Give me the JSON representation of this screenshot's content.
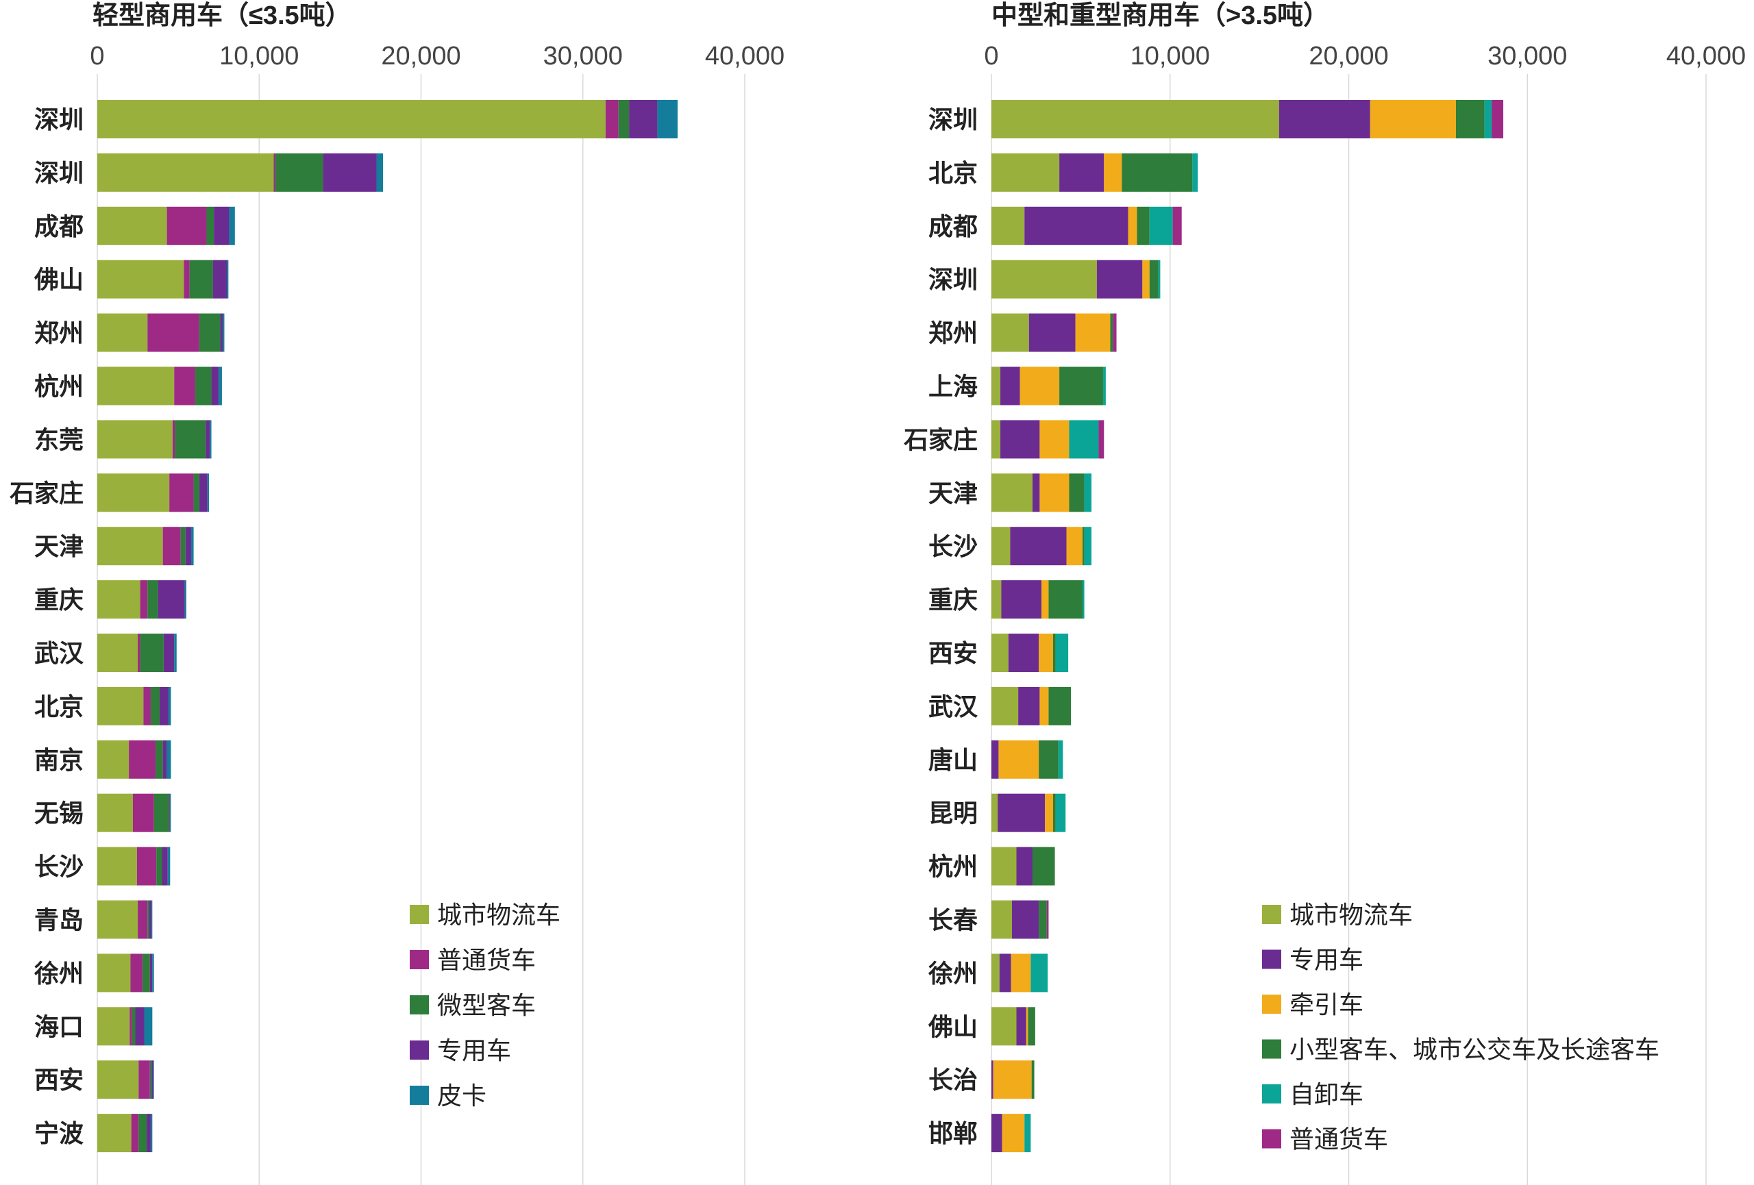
{
  "chart_data": [
    {
      "type": "bar",
      "orientation": "horizontal",
      "stacked": true,
      "title": "轻型商用车（≤3.5吨）",
      "xlim": [
        0,
        40000
      ],
      "x_ticks": [
        0,
        10000,
        20000,
        30000,
        40000
      ],
      "x_tick_labels": [
        "0",
        "10,000",
        "20,000",
        "30,000",
        "40,000"
      ],
      "grid": "vertical",
      "legend_position": "bottom-right",
      "categories": [
        "深圳",
        "深圳",
        "成都",
        "佛山",
        "郑州",
        "杭州",
        "东莞",
        "石家庄",
        "天津",
        "重庆",
        "武汉",
        "北京",
        "南京",
        "无锡",
        "长沙",
        "青岛",
        "徐州",
        "海口",
        "西安",
        "宁波"
      ],
      "series": [
        {
          "name": "城市物流车",
          "color": "#9AB03C",
          "values": [
            31400,
            10900,
            4300,
            5350,
            3100,
            4750,
            4650,
            4450,
            4050,
            2650,
            2500,
            2850,
            1950,
            2200,
            2450,
            2500,
            2050,
            2000,
            2550,
            2100
          ]
        },
        {
          "name": "普通货车",
          "color": "#9E2A86",
          "values": [
            800,
            100,
            2450,
            350,
            3200,
            1300,
            150,
            1500,
            1100,
            450,
            150,
            450,
            1650,
            1300,
            1200,
            600,
            750,
            150,
            700,
            450
          ]
        },
        {
          "name": "微型客车",
          "color": "#2E7D3A",
          "values": [
            650,
            2950,
            450,
            1450,
            1300,
            1000,
            1900,
            350,
            300,
            650,
            1450,
            550,
            450,
            950,
            350,
            100,
            450,
            200,
            100,
            500
          ]
        },
        {
          "name": "专用车",
          "color": "#6B2C91",
          "values": [
            1750,
            3300,
            950,
            850,
            150,
            450,
            250,
            500,
            350,
            1650,
            650,
            550,
            250,
            50,
            350,
            150,
            150,
            550,
            100,
            250
          ]
        },
        {
          "name": "皮卡",
          "color": "#137D9B",
          "values": [
            1250,
            400,
            350,
            100,
            100,
            200,
            100,
            100,
            150,
            100,
            150,
            150,
            250,
            50,
            150,
            50,
            100,
            500,
            50,
            100
          ]
        }
      ]
    },
    {
      "type": "bar",
      "orientation": "horizontal",
      "stacked": true,
      "title": "中型和重型商用车（>3.5吨）",
      "xlim": [
        0,
        40000
      ],
      "x_ticks": [
        0,
        10000,
        20000,
        30000,
        40000
      ],
      "x_tick_labels": [
        "0",
        "10,000",
        "20,000",
        "30,000",
        "40,000"
      ],
      "grid": "vertical",
      "legend_position": "bottom-right",
      "categories": [
        "深圳",
        "北京",
        "成都",
        "深圳",
        "郑州",
        "上海",
        "石家庄",
        "天津",
        "长沙",
        "重庆",
        "西安",
        "武汉",
        "唐山",
        "昆明",
        "杭州",
        "长春",
        "徐州",
        "佛山",
        "长治",
        "邯郸"
      ],
      "series": [
        {
          "name": "城市物流车",
          "color": "#9AB03C",
          "values": [
            16100,
            3800,
            1850,
            5900,
            2100,
            500,
            500,
            2300,
            1050,
            550,
            950,
            1500,
            0,
            350,
            1400,
            1150,
            450,
            1400,
            0,
            0
          ]
        },
        {
          "name": "专用车",
          "color": "#6B2C91",
          "values": [
            5100,
            2500,
            5800,
            2550,
            2600,
            1100,
            2200,
            400,
            3150,
            2250,
            1700,
            1200,
            400,
            2650,
            900,
            1500,
            650,
            550,
            100,
            600
          ]
        },
        {
          "name": "牵引车",
          "color": "#F2AC1B",
          "values": [
            4800,
            1000,
            500,
            400,
            1950,
            2200,
            1650,
            1650,
            900,
            400,
            800,
            500,
            2250,
            450,
            0,
            0,
            1100,
            100,
            2150,
            1250
          ]
        },
        {
          "name": "小型客车、城市公交车及长途客车",
          "color": "#2E7D3A",
          "values": [
            1600,
            3950,
            700,
            500,
            150,
            2450,
            0,
            850,
            100,
            1900,
            150,
            1250,
            1100,
            150,
            1250,
            450,
            0,
            400,
            150,
            0
          ]
        },
        {
          "name": "自卸车",
          "color": "#0AA596",
          "values": [
            400,
            300,
            1300,
            100,
            0,
            150,
            1650,
            400,
            400,
            100,
            700,
            0,
            250,
            550,
            0,
            0,
            950,
            0,
            0,
            350
          ]
        },
        {
          "name": "普通货车",
          "color": "#9E2A86",
          "values": [
            650,
            0,
            500,
            0,
            200,
            0,
            300,
            0,
            0,
            0,
            0,
            0,
            0,
            0,
            0,
            100,
            0,
            0,
            0,
            0
          ]
        }
      ]
    }
  ]
}
